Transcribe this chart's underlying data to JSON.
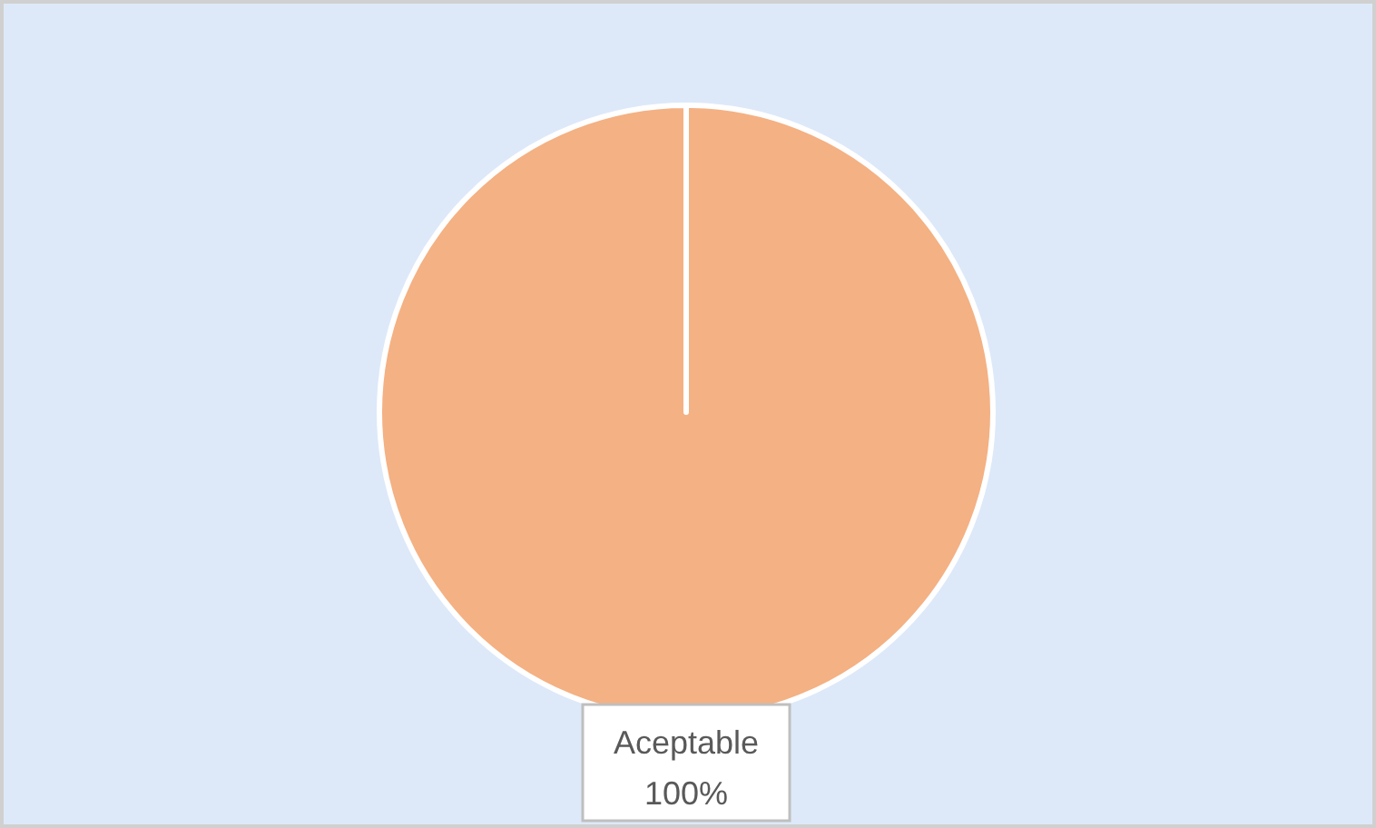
{
  "chart_data": {
    "type": "pie",
    "categories": [
      "Aceptable"
    ],
    "values": [
      100
    ],
    "colors": [
      "#f4b183"
    ],
    "value_labels": [
      "100%"
    ]
  }
}
